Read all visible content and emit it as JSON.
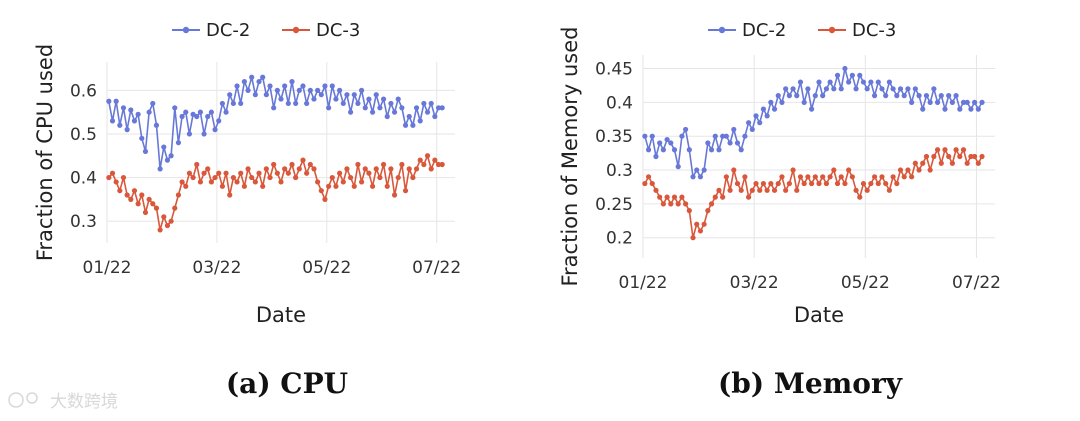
{
  "chart_data": [
    {
      "id": "cpu",
      "type": "line",
      "ylabel": "Fraction of CPU used",
      "xlabel": "Date",
      "caption": "(a) CPU",
      "ylim": [
        0.25,
        0.665
      ],
      "yticks": [
        0.3,
        0.4,
        0.5,
        0.6
      ],
      "ytick_labels": [
        "0.3",
        "0.4",
        "0.5",
        "0.6"
      ],
      "xlim": [
        0,
        19
      ],
      "xticks": [
        0,
        6,
        12,
        18
      ],
      "xtick_labels": [
        "01/22",
        "03/22",
        "05/22",
        "07/22"
      ],
      "legend": [
        "DC-2",
        "DC-3"
      ],
      "series": [
        {
          "name": "DC-2",
          "color": "#6878d8",
          "x": [
            0.1,
            0.3,
            0.5,
            0.7,
            0.9,
            1.1,
            1.3,
            1.5,
            1.7,
            1.9,
            2.1,
            2.3,
            2.5,
            2.7,
            2.9,
            3.1,
            3.3,
            3.5,
            3.7,
            3.9,
            4.1,
            4.3,
            4.5,
            4.7,
            4.9,
            5.1,
            5.3,
            5.5,
            5.7,
            5.9,
            6.1,
            6.3,
            6.5,
            6.7,
            6.9,
            7.1,
            7.3,
            7.5,
            7.7,
            7.9,
            8.1,
            8.3,
            8.5,
            8.7,
            8.9,
            9.1,
            9.3,
            9.5,
            9.7,
            9.9,
            10.1,
            10.3,
            10.5,
            10.7,
            10.9,
            11.1,
            11.3,
            11.5,
            11.7,
            11.9,
            12.1,
            12.3,
            12.5,
            12.7,
            12.9,
            13.1,
            13.3,
            13.5,
            13.7,
            13.9,
            14.1,
            14.3,
            14.5,
            14.7,
            14.9,
            15.1,
            15.3,
            15.5,
            15.7,
            15.9,
            16.1,
            16.3,
            16.5,
            16.7,
            16.9,
            17.1,
            17.3,
            17.5,
            17.7,
            17.9,
            18.1,
            18.3
          ],
          "y": [
            0.575,
            0.53,
            0.575,
            0.52,
            0.56,
            0.51,
            0.555,
            0.53,
            0.545,
            0.49,
            0.46,
            0.55,
            0.57,
            0.52,
            0.42,
            0.47,
            0.44,
            0.45,
            0.56,
            0.48,
            0.54,
            0.55,
            0.5,
            0.545,
            0.54,
            0.55,
            0.5,
            0.54,
            0.55,
            0.51,
            0.53,
            0.57,
            0.55,
            0.59,
            0.57,
            0.61,
            0.57,
            0.62,
            0.6,
            0.63,
            0.59,
            0.62,
            0.63,
            0.59,
            0.61,
            0.56,
            0.6,
            0.58,
            0.61,
            0.57,
            0.62,
            0.57,
            0.6,
            0.61,
            0.57,
            0.6,
            0.58,
            0.6,
            0.59,
            0.61,
            0.56,
            0.61,
            0.58,
            0.6,
            0.57,
            0.59,
            0.55,
            0.59,
            0.57,
            0.6,
            0.56,
            0.58,
            0.55,
            0.59,
            0.56,
            0.58,
            0.54,
            0.57,
            0.55,
            0.58,
            0.56,
            0.52,
            0.54,
            0.52,
            0.56,
            0.53,
            0.57,
            0.55,
            0.57,
            0.54,
            0.56,
            0.56
          ]
        },
        {
          "name": "DC-3",
          "color": "#d9583b",
          "x": [
            0.1,
            0.3,
            0.5,
            0.7,
            0.9,
            1.1,
            1.3,
            1.5,
            1.7,
            1.9,
            2.1,
            2.3,
            2.5,
            2.7,
            2.9,
            3.1,
            3.3,
            3.5,
            3.7,
            3.9,
            4.1,
            4.3,
            4.5,
            4.7,
            4.9,
            5.1,
            5.3,
            5.5,
            5.7,
            5.9,
            6.1,
            6.3,
            6.5,
            6.7,
            6.9,
            7.1,
            7.3,
            7.5,
            7.7,
            7.9,
            8.1,
            8.3,
            8.5,
            8.7,
            8.9,
            9.1,
            9.3,
            9.5,
            9.7,
            9.9,
            10.1,
            10.3,
            10.5,
            10.7,
            10.9,
            11.1,
            11.3,
            11.5,
            11.7,
            11.9,
            12.1,
            12.3,
            12.5,
            12.7,
            12.9,
            13.1,
            13.3,
            13.5,
            13.7,
            13.9,
            14.1,
            14.3,
            14.5,
            14.7,
            14.9,
            15.1,
            15.3,
            15.5,
            15.7,
            15.9,
            16.1,
            16.3,
            16.5,
            16.7,
            16.9,
            17.1,
            17.3,
            17.5,
            17.7,
            17.9,
            18.1,
            18.3
          ],
          "y": [
            0.4,
            0.41,
            0.39,
            0.37,
            0.4,
            0.36,
            0.35,
            0.37,
            0.34,
            0.36,
            0.32,
            0.35,
            0.34,
            0.33,
            0.28,
            0.31,
            0.29,
            0.3,
            0.33,
            0.36,
            0.39,
            0.38,
            0.41,
            0.4,
            0.43,
            0.39,
            0.41,
            0.42,
            0.39,
            0.4,
            0.41,
            0.38,
            0.41,
            0.36,
            0.4,
            0.39,
            0.41,
            0.38,
            0.42,
            0.4,
            0.39,
            0.41,
            0.38,
            0.42,
            0.4,
            0.43,
            0.41,
            0.39,
            0.42,
            0.41,
            0.43,
            0.4,
            0.42,
            0.44,
            0.41,
            0.43,
            0.42,
            0.39,
            0.37,
            0.35,
            0.38,
            0.4,
            0.38,
            0.41,
            0.39,
            0.42,
            0.4,
            0.38,
            0.43,
            0.39,
            0.42,
            0.41,
            0.38,
            0.42,
            0.4,
            0.43,
            0.38,
            0.42,
            0.36,
            0.4,
            0.43,
            0.37,
            0.42,
            0.4,
            0.42,
            0.44,
            0.43,
            0.45,
            0.42,
            0.44,
            0.43,
            0.43
          ]
        }
      ]
    },
    {
      "id": "memory",
      "type": "line",
      "ylabel": "Fraction of Memory used",
      "xlabel": "Date",
      "caption": "(b) Memory",
      "ylim": [
        0.17,
        0.47
      ],
      "yticks": [
        0.2,
        0.25,
        0.3,
        0.35,
        0.4,
        0.45
      ],
      "ytick_labels": [
        "0.2",
        "0.25",
        "0.3",
        "0.35",
        "0.4",
        "0.45"
      ],
      "xlim": [
        0,
        19
      ],
      "xticks": [
        0,
        6,
        12,
        18
      ],
      "xtick_labels": [
        "01/22",
        "03/22",
        "05/22",
        "07/22"
      ],
      "legend": [
        "DC-2",
        "DC-3"
      ],
      "series": [
        {
          "name": "DC-2",
          "color": "#6878d8",
          "x": [
            0.1,
            0.3,
            0.5,
            0.7,
            0.9,
            1.1,
            1.3,
            1.5,
            1.7,
            1.9,
            2.1,
            2.3,
            2.5,
            2.7,
            2.9,
            3.1,
            3.3,
            3.5,
            3.7,
            3.9,
            4.1,
            4.3,
            4.5,
            4.7,
            4.9,
            5.1,
            5.3,
            5.5,
            5.7,
            5.9,
            6.1,
            6.3,
            6.5,
            6.7,
            6.9,
            7.1,
            7.3,
            7.5,
            7.7,
            7.9,
            8.1,
            8.3,
            8.5,
            8.7,
            8.9,
            9.1,
            9.3,
            9.5,
            9.7,
            9.9,
            10.1,
            10.3,
            10.5,
            10.7,
            10.9,
            11.1,
            11.3,
            11.5,
            11.7,
            11.9,
            12.1,
            12.3,
            12.5,
            12.7,
            12.9,
            13.1,
            13.3,
            13.5,
            13.7,
            13.9,
            14.1,
            14.3,
            14.5,
            14.7,
            14.9,
            15.1,
            15.3,
            15.5,
            15.7,
            15.9,
            16.1,
            16.3,
            16.5,
            16.7,
            16.9,
            17.1,
            17.3,
            17.5,
            17.7,
            17.9,
            18.1,
            18.3
          ],
          "y": [
            0.35,
            0.33,
            0.35,
            0.32,
            0.34,
            0.33,
            0.345,
            0.34,
            0.33,
            0.305,
            0.35,
            0.36,
            0.33,
            0.29,
            0.3,
            0.29,
            0.3,
            0.34,
            0.33,
            0.35,
            0.33,
            0.35,
            0.35,
            0.34,
            0.36,
            0.34,
            0.33,
            0.35,
            0.37,
            0.36,
            0.38,
            0.37,
            0.39,
            0.38,
            0.4,
            0.39,
            0.41,
            0.4,
            0.42,
            0.41,
            0.42,
            0.41,
            0.43,
            0.4,
            0.42,
            0.39,
            0.41,
            0.43,
            0.41,
            0.42,
            0.43,
            0.42,
            0.44,
            0.42,
            0.45,
            0.43,
            0.44,
            0.42,
            0.44,
            0.43,
            0.42,
            0.43,
            0.41,
            0.43,
            0.42,
            0.41,
            0.43,
            0.42,
            0.41,
            0.42,
            0.41,
            0.42,
            0.4,
            0.42,
            0.41,
            0.39,
            0.41,
            0.4,
            0.42,
            0.4,
            0.41,
            0.39,
            0.41,
            0.4,
            0.41,
            0.39,
            0.4,
            0.4,
            0.39,
            0.4,
            0.39,
            0.4
          ]
        },
        {
          "name": "DC-3",
          "color": "#d9583b",
          "x": [
            0.1,
            0.3,
            0.5,
            0.7,
            0.9,
            1.1,
            1.3,
            1.5,
            1.7,
            1.9,
            2.1,
            2.3,
            2.5,
            2.7,
            2.9,
            3.1,
            3.3,
            3.5,
            3.7,
            3.9,
            4.1,
            4.3,
            4.5,
            4.7,
            4.9,
            5.1,
            5.3,
            5.5,
            5.7,
            5.9,
            6.1,
            6.3,
            6.5,
            6.7,
            6.9,
            7.1,
            7.3,
            7.5,
            7.7,
            7.9,
            8.1,
            8.3,
            8.5,
            8.7,
            8.9,
            9.1,
            9.3,
            9.5,
            9.7,
            9.9,
            10.1,
            10.3,
            10.5,
            10.7,
            10.9,
            11.1,
            11.3,
            11.5,
            11.7,
            11.9,
            12.1,
            12.3,
            12.5,
            12.7,
            12.9,
            13.1,
            13.3,
            13.5,
            13.7,
            13.9,
            14.1,
            14.3,
            14.5,
            14.7,
            14.9,
            15.1,
            15.3,
            15.5,
            15.7,
            15.9,
            16.1,
            16.3,
            16.5,
            16.7,
            16.9,
            17.1,
            17.3,
            17.5,
            17.7,
            17.9,
            18.1,
            18.3
          ],
          "y": [
            0.28,
            0.29,
            0.28,
            0.27,
            0.26,
            0.25,
            0.26,
            0.25,
            0.26,
            0.25,
            0.26,
            0.25,
            0.24,
            0.2,
            0.22,
            0.21,
            0.22,
            0.24,
            0.25,
            0.26,
            0.27,
            0.26,
            0.29,
            0.27,
            0.3,
            0.28,
            0.27,
            0.29,
            0.26,
            0.27,
            0.28,
            0.27,
            0.28,
            0.27,
            0.28,
            0.27,
            0.28,
            0.29,
            0.27,
            0.28,
            0.3,
            0.27,
            0.29,
            0.28,
            0.29,
            0.28,
            0.29,
            0.28,
            0.29,
            0.28,
            0.29,
            0.3,
            0.28,
            0.29,
            0.28,
            0.3,
            0.29,
            0.27,
            0.26,
            0.28,
            0.27,
            0.28,
            0.29,
            0.28,
            0.29,
            0.28,
            0.27,
            0.29,
            0.28,
            0.3,
            0.29,
            0.3,
            0.29,
            0.31,
            0.3,
            0.31,
            0.32,
            0.3,
            0.32,
            0.33,
            0.31,
            0.33,
            0.32,
            0.31,
            0.33,
            0.32,
            0.33,
            0.31,
            0.32,
            0.32,
            0.31,
            0.32
          ]
        }
      ]
    }
  ],
  "watermark": {
    "text": "大数跨境"
  }
}
